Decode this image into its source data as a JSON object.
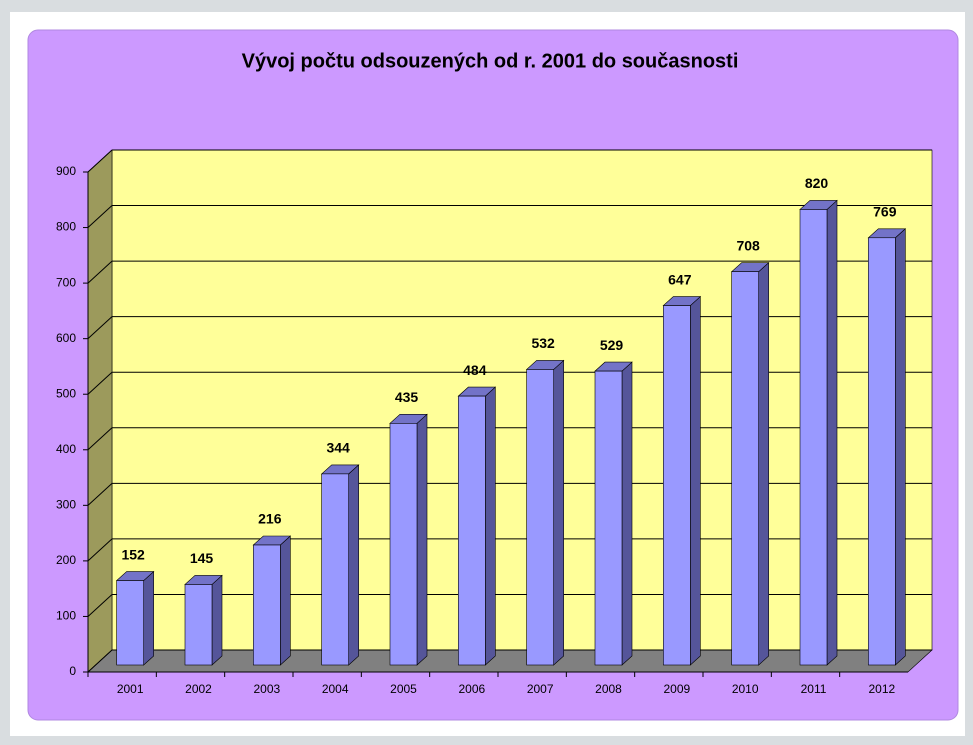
{
  "chart_data": {
    "type": "bar",
    "title": "Vývoj počtu odsouzených od r. 2001 do současnosti",
    "categories": [
      "2001",
      "2002",
      "2003",
      "2004",
      "2005",
      "2006",
      "2007",
      "2008",
      "2009",
      "2010",
      "2011",
      "2012"
    ],
    "values": [
      152,
      145,
      216,
      344,
      435,
      484,
      532,
      529,
      647,
      708,
      820,
      769
    ],
    "color": "#9999ff",
    "ylim": [
      0,
      900
    ],
    "yticks": [
      0,
      100,
      200,
      300,
      400,
      500,
      600,
      700,
      800,
      900
    ],
    "grid": true
  }
}
